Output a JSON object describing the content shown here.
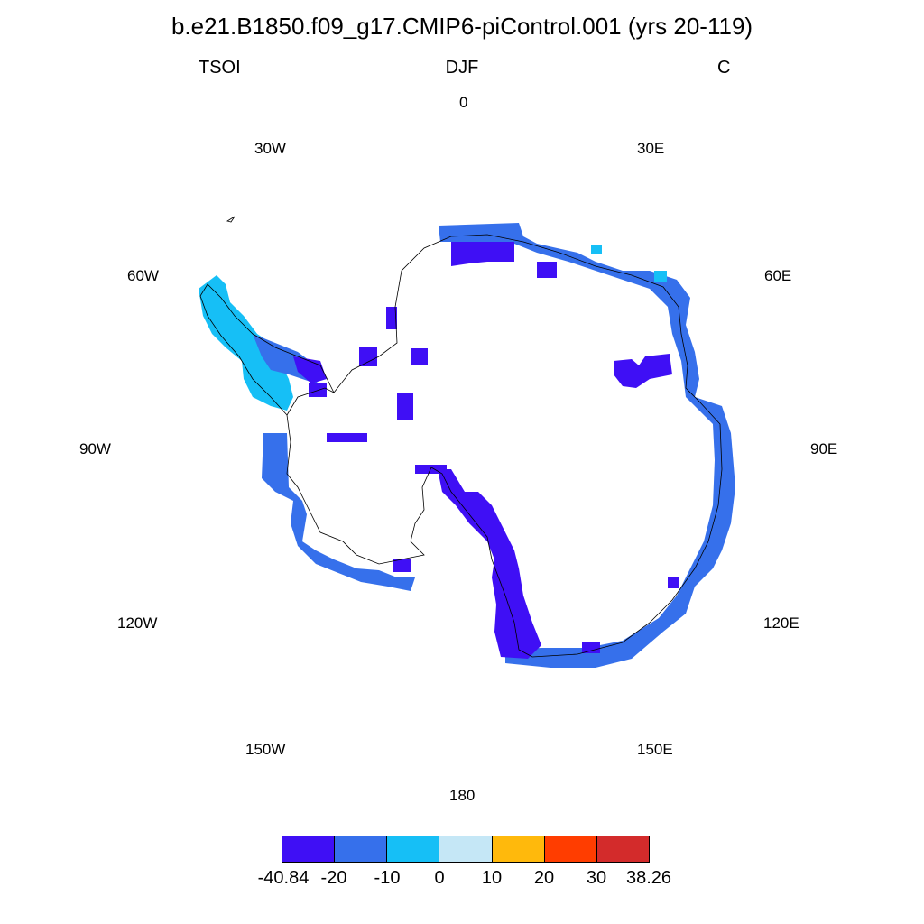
{
  "title": "b.e21.B1850.f09_g17.CMIP6-piControl.001 (yrs 20-119)",
  "subtitles": {
    "left": "TSOI",
    "center": "DJF",
    "right": "C"
  },
  "lon_labels": {
    "lon0": "0",
    "lon30e": "30E",
    "lon60e": "60E",
    "lon90e": "90E",
    "lon120e": "120E",
    "lon150e": "150E",
    "lon180": "180",
    "lon150w": "150W",
    "lon120w": "120W",
    "lon90w": "90W",
    "lon60w": "60W",
    "lon30w": "30W"
  },
  "colorbar": {
    "colors": [
      "#3f0ff5",
      "#3670eb",
      "#16bff6",
      "#c5e7f6",
      "#ffb90c",
      "#ff3d00",
      "#d32b2b"
    ],
    "labels": [
      "-40.84",
      "-20",
      "-10",
      "0",
      "10",
      "20",
      "30",
      "38.26"
    ]
  }
}
